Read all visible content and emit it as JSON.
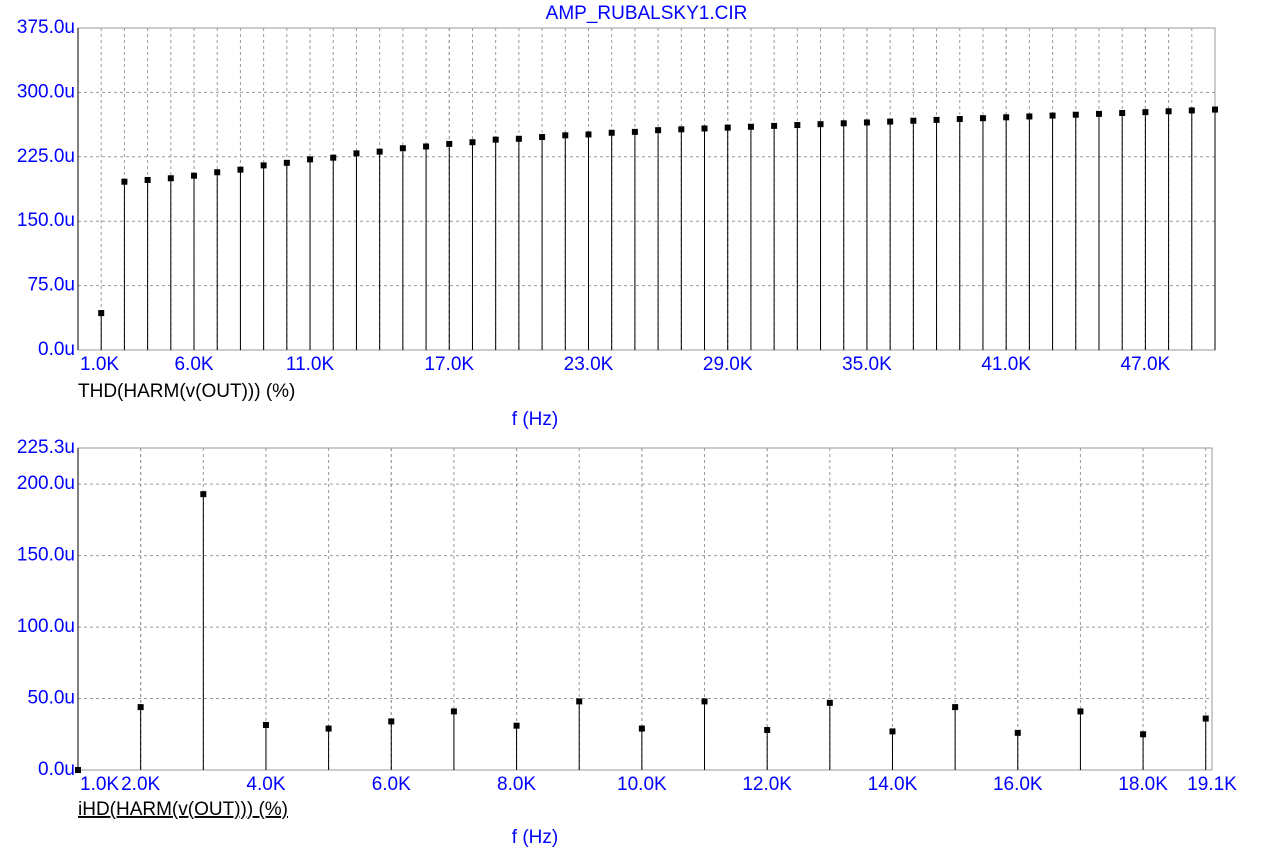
{
  "chart_data": [
    {
      "type": "stem",
      "title": "AMP_RUBALSKY1.CIR",
      "y_label": "THD(HARM(v(OUT))) (%)",
      "x_label": "f (Hz)",
      "color": "#000000",
      "grid": true,
      "x": [
        2000,
        3000,
        4000,
        5000,
        6000,
        7000,
        8000,
        9000,
        10000,
        11000,
        12000,
        13000,
        14000,
        15000,
        16000,
        17000,
        18000,
        19000,
        20000,
        21000,
        22000,
        23000,
        24000,
        25000,
        26000,
        27000,
        28000,
        29000,
        30000,
        31000,
        32000,
        33000,
        34000,
        35000,
        36000,
        37000,
        38000,
        39000,
        40000,
        41000,
        42000,
        43000,
        44000,
        45000,
        46000,
        47000,
        48000,
        49000,
        50000
      ],
      "values": [
        43,
        196,
        198,
        200,
        203,
        207,
        210,
        215,
        218,
        222,
        224,
        229,
        231,
        235,
        237,
        240,
        242,
        245,
        246,
        248,
        250,
        251,
        253,
        254,
        256,
        257,
        258,
        259,
        260,
        261,
        262,
        263,
        264,
        265,
        266,
        267,
        268,
        269,
        270,
        271,
        272,
        273,
        274,
        275,
        276,
        277,
        278,
        279,
        280
      ],
      "xlim": [
        1000,
        50000
      ],
      "xticks": [
        {
          "value": 1000,
          "label": "1.0K"
        },
        {
          "value": 6000,
          "label": "6.0K"
        },
        {
          "value": 11000,
          "label": "11.0K"
        },
        {
          "value": 17000,
          "label": "17.0K"
        },
        {
          "value": 23000,
          "label": "23.0K"
        },
        {
          "value": 29000,
          "label": "29.0K"
        },
        {
          "value": 35000,
          "label": "35.0K"
        },
        {
          "value": 41000,
          "label": "41.0K"
        },
        {
          "value": 47000,
          "label": "47.0K"
        }
      ],
      "ylim": [
        0,
        375
      ],
      "yticks": [
        {
          "value": 0,
          "label": "0.0u"
        },
        {
          "value": 75,
          "label": "75.0u"
        },
        {
          "value": 150,
          "label": "150.0u"
        },
        {
          "value": 225,
          "label": "225.0u"
        },
        {
          "value": 300,
          "label": "300.0u"
        },
        {
          "value": 375,
          "label": "375.0u"
        }
      ]
    },
    {
      "type": "stem",
      "y_label": "iHD(HARM(v(OUT))) (%)",
      "x_label": "f (Hz)",
      "color": "#000000",
      "grid": true,
      "x": [
        1000,
        2000,
        3000,
        4000,
        5000,
        6000,
        7000,
        8000,
        9000,
        10000,
        11000,
        12000,
        13000,
        14000,
        15000,
        16000,
        17000,
        18000,
        19000
      ],
      "values": [
        0,
        44,
        193,
        31.5,
        29,
        34,
        41,
        31,
        48,
        29,
        48,
        28,
        47,
        27,
        44,
        26,
        41,
        25,
        36
      ],
      "xlim": [
        1000,
        19100
      ],
      "xticks": [
        {
          "value": 1000,
          "label": "1.0K"
        },
        {
          "value": 2000,
          "label": "2.0K"
        },
        {
          "value": 4000,
          "label": "4.0K"
        },
        {
          "value": 6000,
          "label": "6.0K"
        },
        {
          "value": 8000,
          "label": "8.0K"
        },
        {
          "value": 10000,
          "label": "10.0K"
        },
        {
          "value": 12000,
          "label": "12.0K"
        },
        {
          "value": 14000,
          "label": "14.0K"
        },
        {
          "value": 16000,
          "label": "16.0K"
        },
        {
          "value": 18000,
          "label": "18.0K"
        },
        {
          "value": 19100,
          "label": "19.1K"
        }
      ],
      "ylim": [
        0,
        225.3
      ],
      "yticks": [
        {
          "value": 0,
          "label": "0.0u"
        },
        {
          "value": 50,
          "label": "50.0u"
        },
        {
          "value": 100,
          "label": "100.0u"
        },
        {
          "value": 150,
          "label": "150.0u"
        },
        {
          "value": 200,
          "label": "200.0u"
        },
        {
          "value": 225.3,
          "label": "225.3u"
        }
      ]
    }
  ]
}
